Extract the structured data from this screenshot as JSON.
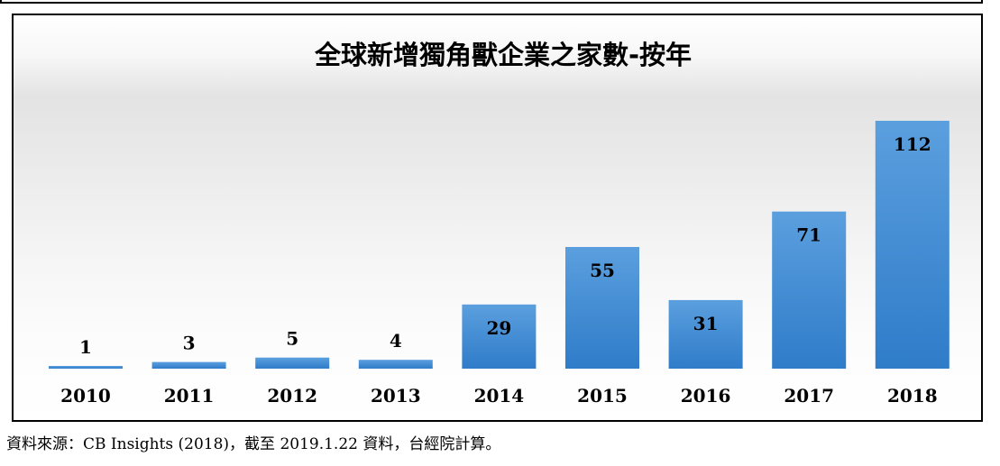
{
  "chart_data": {
    "type": "bar",
    "title": "全球新增獨角獸企業之家數-按年",
    "categories": [
      "2010",
      "2011",
      "2012",
      "2013",
      "2014",
      "2015",
      "2016",
      "2017",
      "2018"
    ],
    "values": [
      1,
      3,
      5,
      4,
      29,
      55,
      31,
      71,
      112
    ],
    "xlabel": "",
    "ylabel": "",
    "ylim": [
      0,
      112
    ],
    "grid": false,
    "legend": "none",
    "data_labels": true,
    "bar_color": "#4a90d4"
  },
  "source_note": "資料來源：CB Insights (2018)，截至 2019.1.22 資料，台經院計算。"
}
